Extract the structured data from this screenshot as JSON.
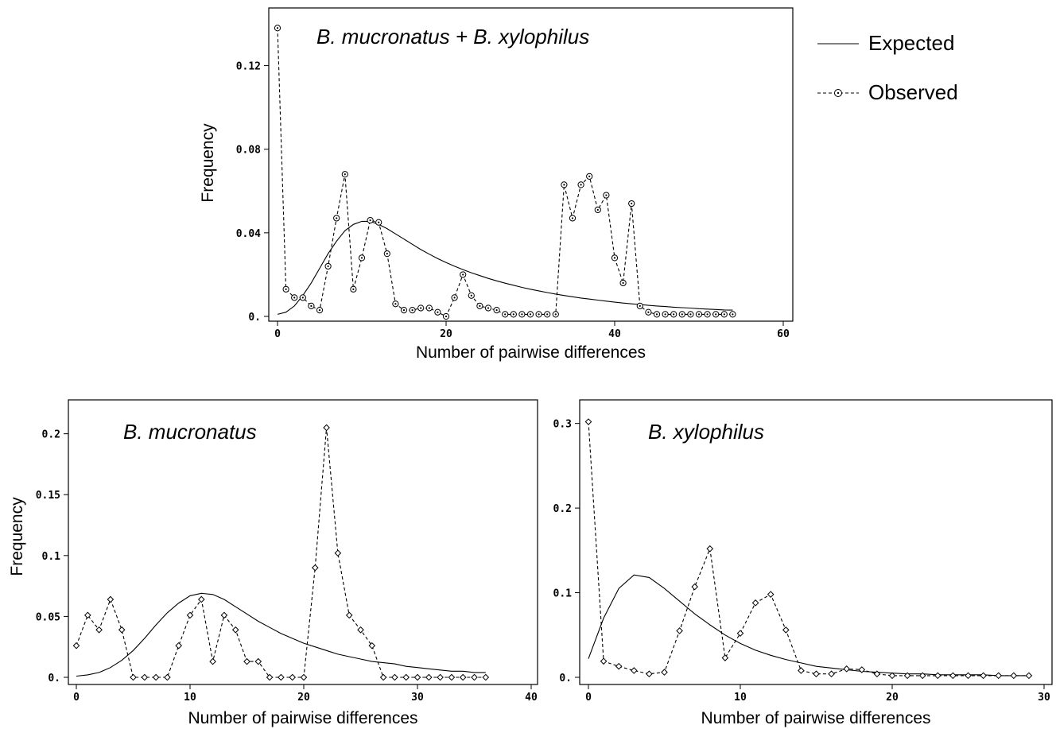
{
  "legend": {
    "placement": "right of top panel",
    "items": [
      {
        "label": "Expected",
        "style": "solid"
      },
      {
        "label": "Observed",
        "style": "dashed with circle markers"
      }
    ]
  },
  "chart_data": [
    {
      "type": "line",
      "title": "B. mucronatus + B. xylophilus",
      "xlabel": "Number of pairwise differences",
      "ylabel": "Frequency",
      "xlim": [
        0,
        60
      ],
      "ylim": [
        0,
        0.14
      ],
      "xticks": [
        0,
        20,
        40,
        60
      ],
      "xtick_labels": [
        "0",
        "20",
        "40",
        "60"
      ],
      "yticks": [
        0,
        0.04,
        0.08,
        0.12
      ],
      "ytick_labels": [
        "0.",
        "0.04",
        "0.08",
        "0.12"
      ],
      "marker": "circle",
      "series": [
        {
          "name": "Expected",
          "style": "solid",
          "x": [
            0,
            1,
            2,
            3,
            4,
            5,
            6,
            7,
            8,
            9,
            10,
            11,
            12,
            13,
            14,
            15,
            16,
            17,
            18,
            19,
            20,
            21,
            22,
            23,
            24,
            25,
            26,
            27,
            28,
            29,
            30,
            31,
            32,
            33,
            34,
            35,
            36,
            37,
            38,
            39,
            40,
            41,
            42,
            43,
            44,
            45,
            46,
            47,
            48,
            49,
            50,
            51,
            52,
            53,
            54
          ],
          "y": [
            0.001,
            0.002,
            0.005,
            0.01,
            0.016,
            0.023,
            0.03,
            0.036,
            0.041,
            0.044,
            0.0455,
            0.0455,
            0.044,
            0.042,
            0.0395,
            0.037,
            0.0345,
            0.032,
            0.0298,
            0.0277,
            0.0258,
            0.024,
            0.0224,
            0.0209,
            0.0195,
            0.0182,
            0.017,
            0.0159,
            0.0149,
            0.0139,
            0.013,
            0.0122,
            0.0114,
            0.0107,
            0.01,
            0.0094,
            0.0088,
            0.0083,
            0.0078,
            0.0073,
            0.0068,
            0.0064,
            0.006,
            0.0057,
            0.0053,
            0.005,
            0.0047,
            0.0044,
            0.0042,
            0.004,
            0.0037,
            0.0035,
            0.0033,
            0.0031,
            0.003
          ]
        },
        {
          "name": "Observed",
          "style": "dashed",
          "x": [
            0,
            1,
            2,
            3,
            4,
            5,
            6,
            7,
            8,
            9,
            10,
            11,
            12,
            13,
            14,
            15,
            16,
            17,
            18,
            19,
            20,
            21,
            22,
            23,
            24,
            25,
            26,
            27,
            28,
            29,
            30,
            31,
            32,
            33,
            34,
            35,
            36,
            37,
            38,
            39,
            40,
            41,
            42,
            43,
            44,
            45,
            46,
            47,
            48,
            49,
            50,
            51,
            52,
            53,
            54
          ],
          "y": [
            0.138,
            0.013,
            0.009,
            0.009,
            0.005,
            0.003,
            0.024,
            0.047,
            0.068,
            0.013,
            0.028,
            0.046,
            0.045,
            0.03,
            0.006,
            0.003,
            0.003,
            0.004,
            0.004,
            0.002,
            0.0,
            0.009,
            0.02,
            0.01,
            0.005,
            0.004,
            0.003,
            0.001,
            0.001,
            0.001,
            0.001,
            0.001,
            0.001,
            0.001,
            0.063,
            0.047,
            0.063,
            0.067,
            0.051,
            0.058,
            0.028,
            0.016,
            0.054,
            0.005,
            0.002,
            0.001,
            0.001,
            0.001,
            0.001,
            0.001,
            0.001,
            0.001,
            0.001,
            0.001,
            0.001
          ]
        }
      ]
    },
    {
      "type": "line",
      "title": "B. mucronatus",
      "xlabel": "Number of pairwise differences",
      "ylabel": "Frequency",
      "xlim": [
        0,
        40
      ],
      "ylim": [
        0,
        0.22
      ],
      "xticks": [
        0,
        10,
        20,
        30,
        40
      ],
      "xtick_labels": [
        "0",
        "10",
        "20",
        "30",
        "40"
      ],
      "yticks": [
        0,
        0.05,
        0.1,
        0.15,
        0.2
      ],
      "ytick_labels": [
        "0.",
        "0.05",
        "0.1",
        "0.15",
        "0.2"
      ],
      "marker": "diamond",
      "series": [
        {
          "name": "Expected",
          "style": "solid",
          "x": [
            0,
            1,
            2,
            3,
            4,
            5,
            6,
            7,
            8,
            9,
            10,
            11,
            12,
            13,
            14,
            15,
            16,
            17,
            18,
            19,
            20,
            21,
            22,
            23,
            24,
            25,
            26,
            27,
            28,
            29,
            30,
            31,
            32,
            33,
            34,
            35,
            36
          ],
          "y": [
            0.001,
            0.002,
            0.004,
            0.008,
            0.014,
            0.022,
            0.032,
            0.043,
            0.053,
            0.061,
            0.067,
            0.069,
            0.068,
            0.064,
            0.058,
            0.052,
            0.046,
            0.041,
            0.036,
            0.032,
            0.028,
            0.025,
            0.022,
            0.019,
            0.017,
            0.015,
            0.013,
            0.012,
            0.011,
            0.009,
            0.008,
            0.007,
            0.006,
            0.005,
            0.005,
            0.004,
            0.004
          ]
        },
        {
          "name": "Observed",
          "style": "dashed",
          "x": [
            0,
            1,
            2,
            3,
            4,
            5,
            6,
            7,
            8,
            9,
            10,
            11,
            12,
            13,
            14,
            15,
            16,
            17,
            18,
            19,
            20,
            21,
            22,
            23,
            24,
            25,
            26,
            27,
            28,
            29,
            30,
            31,
            32,
            33,
            34,
            35,
            36
          ],
          "y": [
            0.026,
            0.051,
            0.039,
            0.064,
            0.039,
            0.0,
            0.0,
            0.0,
            0.0,
            0.026,
            0.051,
            0.064,
            0.013,
            0.051,
            0.039,
            0.013,
            0.013,
            0.0,
            0.0,
            0.0,
            0.0,
            0.09,
            0.205,
            0.102,
            0.051,
            0.039,
            0.026,
            0.0,
            0.0,
            0.0,
            0.0,
            0.0,
            0.0,
            0.0,
            0.0,
            0.0,
            0.0
          ]
        }
      ]
    },
    {
      "type": "line",
      "title": "B. xylophilus",
      "xlabel": "Number of pairwise differences",
      "ylabel": "",
      "xlim": [
        0,
        30
      ],
      "ylim": [
        0,
        0.31
      ],
      "xticks": [
        0,
        10,
        20,
        30
      ],
      "xtick_labels": [
        "0",
        "10",
        "20",
        "30"
      ],
      "yticks": [
        0,
        0.1,
        0.2,
        0.3
      ],
      "ytick_labels": [
        "0.",
        "0.1",
        "0.2",
        "0.3"
      ],
      "marker": "diamond",
      "series": [
        {
          "name": "Expected",
          "style": "solid",
          "x": [
            0,
            1,
            2,
            3,
            4,
            5,
            6,
            7,
            8,
            9,
            10,
            11,
            12,
            13,
            14,
            15,
            16,
            17,
            18,
            19,
            20,
            21,
            22,
            23,
            24,
            25,
            26,
            27,
            28,
            29
          ],
          "y": [
            0.022,
            0.07,
            0.105,
            0.121,
            0.118,
            0.105,
            0.09,
            0.075,
            0.062,
            0.05,
            0.04,
            0.032,
            0.026,
            0.021,
            0.017,
            0.013,
            0.011,
            0.009,
            0.007,
            0.006,
            0.005,
            0.004,
            0.004,
            0.003,
            0.003,
            0.003,
            0.003,
            0.002,
            0.002,
            0.002
          ]
        },
        {
          "name": "Observed",
          "style": "dashed",
          "x": [
            0,
            1,
            2,
            3,
            4,
            5,
            6,
            7,
            8,
            9,
            10,
            11,
            12,
            13,
            14,
            15,
            16,
            17,
            18,
            19,
            20,
            21,
            22,
            23,
            24,
            25,
            26,
            27,
            28,
            29
          ],
          "y": [
            0.302,
            0.019,
            0.013,
            0.008,
            0.004,
            0.006,
            0.055,
            0.107,
            0.152,
            0.023,
            0.052,
            0.088,
            0.098,
            0.056,
            0.008,
            0.004,
            0.004,
            0.01,
            0.009,
            0.004,
            0.002,
            0.002,
            0.002,
            0.002,
            0.002,
            0.002,
            0.002,
            0.002,
            0.002,
            0.002
          ]
        }
      ]
    }
  ]
}
